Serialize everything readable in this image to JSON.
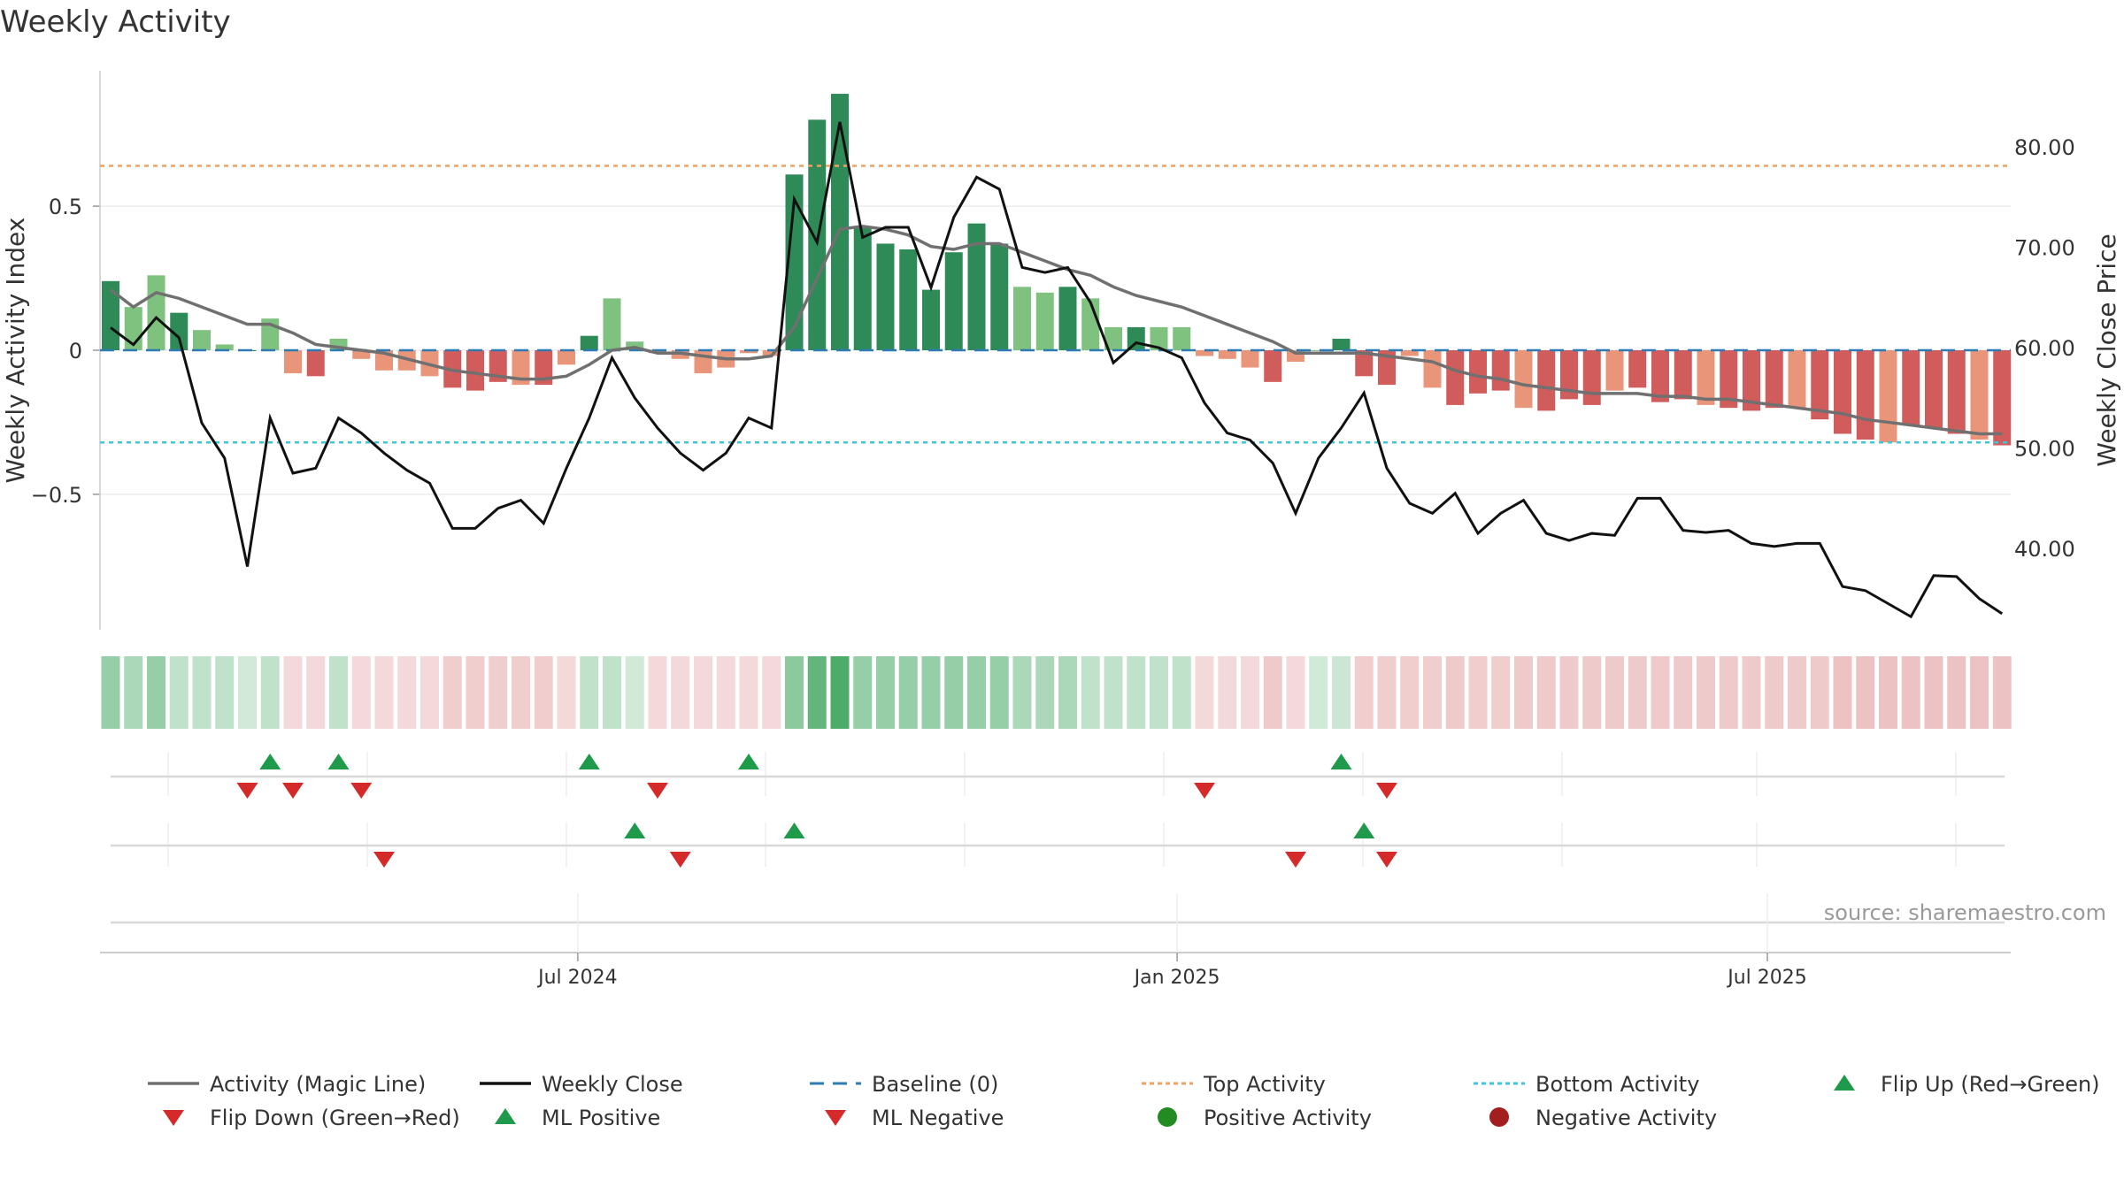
{
  "chart_data": {
    "type": "bar",
    "title": "Weekly Activity",
    "source": "source: sharemaestro.com",
    "y_left": {
      "label": "Weekly Activity Index",
      "ylim": [
        -0.97,
        0.97
      ],
      "ticks": [
        0.5,
        0,
        -0.5
      ],
      "tick_labels": [
        "0.5",
        "0",
        "−0.5"
      ]
    },
    "y_right": {
      "label": "Weekly Close Price",
      "ylim": [
        31.9,
        87.6
      ],
      "ticks": [
        80,
        70,
        60,
        50,
        40
      ],
      "tick_labels": [
        "80.00",
        "70.00",
        "60.00",
        "50.00",
        "40.00"
      ]
    },
    "x_ticks": [
      {
        "label": "Jul 2024",
        "week": 20.5
      },
      {
        "label": "Jan 2025",
        "week": 46.8
      },
      {
        "label": "Jul 2025",
        "week": 72.7
      }
    ],
    "weeks": 84,
    "top_activity": 0.64,
    "bottom_activity": -0.32,
    "baseline": 0,
    "activity": [
      0.24,
      0.15,
      0.26,
      0.13,
      0.07,
      0.02,
      0.0,
      0.11,
      -0.08,
      -0.09,
      0.04,
      -0.03,
      -0.07,
      -0.07,
      -0.09,
      -0.13,
      -0.14,
      -0.11,
      -0.12,
      -0.12,
      -0.05,
      0.05,
      0.18,
      0.03,
      -0.01,
      -0.03,
      -0.08,
      -0.06,
      -0.01,
      -0.02,
      0.61,
      0.8,
      0.89,
      0.43,
      0.37,
      0.35,
      0.21,
      0.34,
      0.44,
      0.37,
      0.22,
      0.2,
      0.22,
      0.18,
      0.08,
      0.08,
      0.08,
      0.08,
      -0.02,
      -0.03,
      -0.06,
      -0.11,
      -0.04,
      0.0,
      0.04,
      -0.09,
      -0.12,
      -0.02,
      -0.13,
      -0.19,
      -0.15,
      -0.14,
      -0.2,
      -0.21,
      -0.17,
      -0.19,
      -0.14,
      -0.13,
      -0.18,
      -0.17,
      -0.19,
      -0.2,
      -0.21,
      -0.2,
      -0.2,
      -0.24,
      -0.29,
      -0.31,
      -0.32,
      -0.26,
      -0.27,
      -0.29,
      -0.31,
      -0.33
    ],
    "magic_line": [
      0.21,
      0.15,
      0.2,
      0.18,
      0.15,
      0.12,
      0.09,
      0.09,
      0.06,
      0.02,
      0.01,
      0.0,
      -0.01,
      -0.03,
      -0.05,
      -0.07,
      -0.08,
      -0.09,
      -0.1,
      -0.1,
      -0.09,
      -0.05,
      0.0,
      0.01,
      -0.01,
      -0.01,
      -0.02,
      -0.03,
      -0.03,
      -0.02,
      0.08,
      0.25,
      0.42,
      0.43,
      0.42,
      0.4,
      0.36,
      0.35,
      0.37,
      0.37,
      0.34,
      0.31,
      0.28,
      0.26,
      0.22,
      0.19,
      0.17,
      0.15,
      0.12,
      0.09,
      0.06,
      0.03,
      -0.01,
      -0.01,
      -0.01,
      -0.01,
      -0.02,
      -0.03,
      -0.04,
      -0.07,
      -0.09,
      -0.1,
      -0.12,
      -0.13,
      -0.14,
      -0.15,
      -0.15,
      -0.15,
      -0.16,
      -0.16,
      -0.17,
      -0.17,
      -0.18,
      -0.19,
      -0.2,
      -0.21,
      -0.22,
      -0.24,
      -0.25,
      -0.26,
      -0.27,
      -0.28,
      -0.29,
      -0.29
    ],
    "weekly_close": [
      62.0,
      60.3,
      63.0,
      61.0,
      52.5,
      49.0,
      38.2,
      53.0,
      47.5,
      48.0,
      53.0,
      51.5,
      49.5,
      47.8,
      46.5,
      42.0,
      42.0,
      44.0,
      44.8,
      42.5,
      48.0,
      53.0,
      59.0,
      55.0,
      52.0,
      49.5,
      47.8,
      49.5,
      53.0,
      52.0,
      74.8,
      70.5,
      82.5,
      71.0,
      72.0,
      72.0,
      66.0,
      73.0,
      77.0,
      75.8,
      68.0,
      67.5,
      68.0,
      64.5,
      58.5,
      60.5,
      60.0,
      59.0,
      54.5,
      51.5,
      50.8,
      48.5,
      43.5,
      49.0,
      52.0,
      55.5,
      48.0,
      44.5,
      43.5,
      45.5,
      41.5,
      43.5,
      44.8,
      41.5,
      40.8,
      41.5,
      41.3,
      45.0,
      45.0,
      41.8,
      41.6,
      41.8,
      40.5,
      40.2,
      40.5,
      40.5,
      36.2,
      35.8,
      34.5,
      33.2,
      37.3,
      37.2,
      35.0,
      33.5
    ],
    "heat_strip_opacity": [
      0.5,
      0.4,
      0.5,
      0.3,
      0.3,
      0.3,
      0.22,
      0.3,
      0.22,
      0.22,
      0.3,
      0.22,
      0.22,
      0.22,
      0.22,
      0.28,
      0.28,
      0.28,
      0.28,
      0.28,
      0.22,
      0.3,
      0.3,
      0.22,
      0.22,
      0.22,
      0.22,
      0.22,
      0.22,
      0.22,
      0.55,
      0.75,
      0.85,
      0.5,
      0.5,
      0.5,
      0.5,
      0.5,
      0.5,
      0.5,
      0.4,
      0.4,
      0.4,
      0.3,
      0.3,
      0.3,
      0.3,
      0.3,
      0.22,
      0.22,
      0.22,
      0.3,
      0.22,
      0.22,
      0.25,
      0.28,
      0.28,
      0.28,
      0.28,
      0.3,
      0.28,
      0.28,
      0.3,
      0.3,
      0.3,
      0.3,
      0.3,
      0.3,
      0.3,
      0.3,
      0.3,
      0.3,
      0.3,
      0.3,
      0.3,
      0.3,
      0.35,
      0.35,
      0.35,
      0.35,
      0.35,
      0.35,
      0.35,
      0.35
    ],
    "flips": {
      "up": [
        7,
        10,
        21,
        28,
        54
      ],
      "down": [
        6,
        8,
        11,
        24,
        48,
        56
      ]
    },
    "ml_signals": {
      "positive": [
        23,
        30,
        55
      ],
      "negative": [
        12,
        25,
        52,
        56
      ]
    },
    "legend": [
      {
        "label": "Activity (Magic Line)",
        "kind": "line",
        "color": "#707070"
      },
      {
        "label": "Weekly Close",
        "kind": "line",
        "color": "#111111"
      },
      {
        "label": "Baseline (0)",
        "kind": "dash",
        "color": "#2e7bb4"
      },
      {
        "label": "Top Activity",
        "kind": "dot",
        "color": "#f0a060"
      },
      {
        "label": "Bottom Activity",
        "kind": "dot",
        "color": "#3cc8d8"
      },
      {
        "label": "Flip Up (Red→Green)",
        "kind": "tri-up",
        "color": "#1e9a4a"
      },
      {
        "label": "Flip Down (Green→Red)",
        "kind": "tri-down",
        "color": "#d42a2a"
      },
      {
        "label": "ML Positive",
        "kind": "tri-up",
        "color": "#1e9a4a"
      },
      {
        "label": "ML Negative",
        "kind": "tri-down",
        "color": "#d42a2a"
      },
      {
        "label": "Positive Activity",
        "kind": "circle",
        "color": "#228b22"
      },
      {
        "label": "Negative Activity",
        "kind": "circle",
        "color": "#a31f1f"
      }
    ],
    "colors": {
      "strong_green": "#2e8b57",
      "light_green": "#7fc17f",
      "strong_red": "#d05c5c",
      "light_red": "#e8957a",
      "heat_green": "#2e9e4f",
      "heat_red": "#c85050"
    }
  }
}
